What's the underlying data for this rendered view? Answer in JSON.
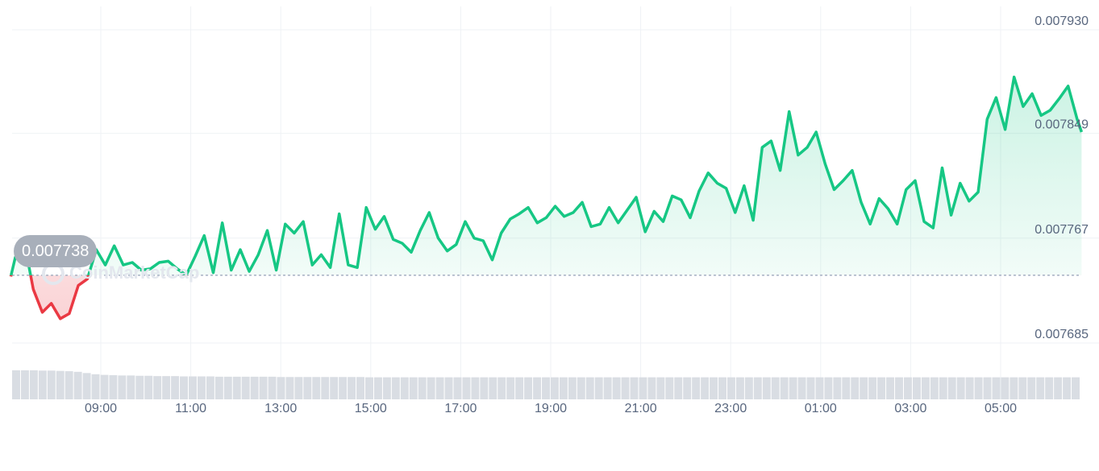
{
  "chart_data": {
    "type": "line",
    "title": "",
    "xlabel": "",
    "ylabel": "",
    "x_ticks": [
      "09:00",
      "11:00",
      "13:00",
      "15:00",
      "17:00",
      "19:00",
      "21:00",
      "23:00",
      "01:00",
      "03:00",
      "05:00"
    ],
    "y_ticks": [
      "0.007930",
      "0.007849",
      "0.007767",
      "0.007685"
    ],
    "ylim": [
      0.007685,
      0.00793
    ],
    "baseline_value": 0.007738,
    "baseline_label": "0.007738",
    "x_start_hour": 7.0,
    "x_end_hour": 30.8,
    "series": [
      {
        "x": [
          7.0,
          7.1,
          7.3,
          7.5,
          7.7,
          7.9,
          8.1,
          8.3,
          8.5,
          8.7,
          8.9,
          9.1,
          9.3,
          9.5,
          9.7,
          9.9,
          10.1,
          10.3,
          10.5,
          10.7,
          10.9,
          11.1,
          11.3,
          11.5,
          11.7,
          11.9,
          12.1,
          12.3,
          12.5,
          12.7,
          12.9,
          13.1,
          13.3,
          13.5,
          13.7,
          13.9,
          14.1,
          14.3,
          14.5,
          14.7,
          14.9,
          15.1,
          15.3,
          15.5,
          15.7,
          15.9,
          16.1,
          16.3,
          16.5,
          16.7,
          16.9,
          17.1,
          17.3,
          17.5,
          17.7,
          17.9,
          18.1,
          18.3,
          18.5,
          18.7,
          18.9,
          19.1,
          19.3,
          19.5,
          19.7,
          19.9,
          20.1,
          20.3,
          20.5,
          20.7,
          20.9,
          21.1,
          21.3,
          21.5,
          21.7,
          21.9,
          22.1,
          22.3,
          22.5,
          22.7,
          22.9,
          23.1,
          23.3,
          23.5,
          23.7,
          23.9,
          24.1,
          24.3,
          24.5,
          24.7,
          24.9,
          25.1,
          25.3,
          25.5,
          25.7,
          25.9,
          26.1,
          26.3,
          26.5,
          26.7,
          26.9,
          27.1,
          27.3,
          27.5,
          27.7,
          27.9,
          28.1,
          28.3,
          28.5,
          28.7,
          28.9,
          29.1,
          29.3,
          29.5,
          29.7,
          29.9,
          30.1,
          30.3,
          30.5,
          30.7,
          30.8
        ],
        "values": [
          0.007737,
          0.007752,
          0.007764,
          0.007727,
          0.007709,
          0.007716,
          0.007704,
          0.007708,
          0.00773,
          0.007735,
          0.007758,
          0.007746,
          0.007761,
          0.007746,
          0.007748,
          0.007742,
          0.007743,
          0.007748,
          0.007749,
          0.007743,
          0.007738,
          0.007753,
          0.007769,
          0.00774,
          0.007779,
          0.007742,
          0.007758,
          0.007741,
          0.007754,
          0.007773,
          0.007742,
          0.007778,
          0.007771,
          0.00778,
          0.007746,
          0.007754,
          0.007744,
          0.007786,
          0.007746,
          0.007744,
          0.007791,
          0.007774,
          0.007784,
          0.007766,
          0.007763,
          0.007756,
          0.007773,
          0.007787,
          0.007767,
          0.007757,
          0.007762,
          0.00778,
          0.007767,
          0.007765,
          0.00775,
          0.007771,
          0.007782,
          0.007786,
          0.007791,
          0.007779,
          0.007783,
          0.007792,
          0.007784,
          0.007787,
          0.007795,
          0.007776,
          0.007778,
          0.007791,
          0.007779,
          0.007789,
          0.007799,
          0.007772,
          0.007788,
          0.00778,
          0.0078,
          0.007797,
          0.007783,
          0.007804,
          0.007818,
          0.00781,
          0.007806,
          0.007787,
          0.007808,
          0.007781,
          0.007838,
          0.007843,
          0.00782,
          0.007866,
          0.007832,
          0.007838,
          0.00785,
          0.007825,
          0.007805,
          0.007812,
          0.00782,
          0.007795,
          0.007778,
          0.007798,
          0.00779,
          0.007778,
          0.007805,
          0.007812,
          0.00778,
          0.007775,
          0.007822,
          0.007785,
          0.00781,
          0.007796,
          0.007803,
          0.00786,
          0.007877,
          0.007852,
          0.007893,
          0.00787,
          0.00788,
          0.007863,
          0.007867,
          0.007876,
          0.007886,
          0.00786,
          0.00785
        ]
      }
    ],
    "colors": {
      "up": "#16c784",
      "down": "#ea3943",
      "up_fill": "#16c784",
      "down_fill": "#ea3943",
      "grid": "#eff2f5",
      "volume": "#d9dde3"
    },
    "volume": [
      0.95,
      0.95,
      0.95,
      0.94,
      0.94,
      0.93,
      0.92,
      0.9,
      0.86,
      0.82,
      0.8,
      0.79,
      0.78,
      0.78,
      0.77,
      0.77,
      0.76,
      0.76,
      0.76,
      0.75,
      0.75,
      0.75,
      0.75,
      0.74,
      0.74,
      0.74,
      0.74,
      0.74,
      0.74,
      0.74,
      0.73,
      0.73,
      0.73,
      0.73,
      0.73,
      0.73,
      0.73,
      0.73,
      0.73,
      0.73,
      0.72,
      0.72,
      0.72,
      0.72,
      0.72,
      0.72,
      0.72,
      0.72,
      0.72,
      0.72,
      0.72,
      0.72,
      0.72,
      0.72,
      0.72,
      0.72,
      0.72,
      0.72,
      0.72,
      0.72,
      0.72,
      0.72,
      0.72,
      0.72,
      0.72,
      0.72,
      0.72,
      0.72,
      0.72,
      0.72,
      0.72,
      0.72,
      0.72,
      0.72,
      0.72,
      0.72,
      0.72,
      0.72,
      0.72,
      0.72,
      0.72,
      0.72,
      0.72,
      0.72,
      0.72,
      0.72,
      0.72,
      0.72,
      0.72,
      0.72,
      0.72,
      0.72,
      0.72,
      0.72,
      0.72,
      0.72,
      0.72,
      0.72,
      0.72,
      0.72,
      0.72,
      0.72,
      0.72,
      0.72,
      0.72,
      0.72,
      0.72,
      0.72,
      0.72,
      0.72,
      0.72,
      0.72,
      0.72,
      0.72,
      0.72,
      0.72,
      0.72,
      0.72,
      0.72,
      0.72,
      0.72
    ]
  },
  "watermark": {
    "text": "CoinMarketCap",
    "logo_icon": "coinmarketcap-logo-icon"
  }
}
